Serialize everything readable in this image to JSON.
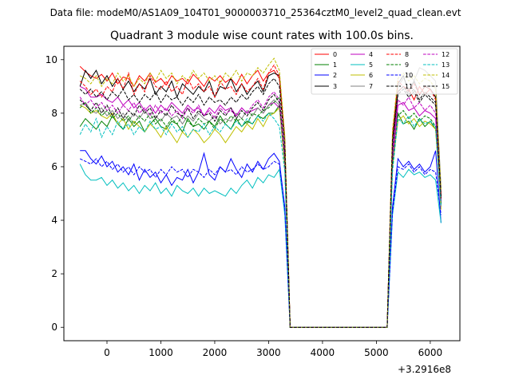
{
  "suptitle": "Data file: modeM0/AS1A09_104T01_9000003710_25364cztM0_level2_quad_clean.evt",
  "chart_data": {
    "type": "line",
    "title": "Quadrant 3 module wise count rates with 100.0s bins.",
    "xlabel": "",
    "ylabel": "",
    "x_offset_label": "+3.2916e8",
    "xlim": [
      -800,
      6550
    ],
    "ylim": [
      -0.5,
      10.5
    ],
    "x_ticks": [
      0,
      1000,
      2000,
      3000,
      4000,
      5000,
      6000
    ],
    "y_ticks": [
      0,
      2,
      4,
      6,
      8,
      10
    ],
    "x": [
      -500,
      -400,
      -300,
      -200,
      -100,
      0,
      100,
      200,
      300,
      400,
      500,
      600,
      700,
      800,
      900,
      1000,
      1100,
      1200,
      1300,
      1400,
      1500,
      1600,
      1700,
      1800,
      1900,
      2000,
      2100,
      2200,
      2300,
      2400,
      2500,
      2600,
      2700,
      2800,
      2900,
      3000,
      3100,
      3200,
      3300,
      3400,
      3500,
      3600,
      3700,
      3800,
      3900,
      4000,
      4100,
      4200,
      4300,
      4400,
      4500,
      4600,
      4700,
      4800,
      4900,
      5000,
      5100,
      5200,
      5300,
      5400,
      5500,
      5600,
      5700,
      5800,
      5900,
      6000,
      6100,
      6200
    ],
    "legend": {
      "location": "upper right",
      "ncol": 4
    },
    "series": [
      {
        "name": "0",
        "color": "#ff0000",
        "dash": "solid",
        "values": [
          9.75,
          9.55,
          9.4,
          9.3,
          9.45,
          9.2,
          9.5,
          9.1,
          9.35,
          9.3,
          9.0,
          9.4,
          9.2,
          9.5,
          9.15,
          9.3,
          9.05,
          9.4,
          9.2,
          9.3,
          9.1,
          9.45,
          9.25,
          9.0,
          9.35,
          9.2,
          9.4,
          9.15,
          9.3,
          9.05,
          9.45,
          9.1,
          9.4,
          9.6,
          9.2,
          9.5,
          9.6,
          9.3,
          7.0,
          0,
          0,
          0,
          0,
          0,
          0,
          0,
          0,
          0,
          0,
          0,
          0,
          0,
          0,
          0,
          0,
          0,
          0,
          0,
          7.0,
          8.8,
          9.0,
          8.9,
          8.5,
          9.0,
          8.7,
          8.9,
          8.6,
          4.8
        ]
      },
      {
        "name": "1",
        "color": "#008000",
        "dash": "solid",
        "values": [
          7.5,
          7.8,
          7.6,
          7.4,
          7.7,
          7.5,
          7.9,
          7.6,
          7.4,
          7.8,
          7.5,
          7.7,
          7.3,
          7.6,
          7.8,
          7.5,
          7.4,
          7.7,
          7.6,
          7.3,
          7.8,
          7.5,
          7.6,
          7.4,
          7.7,
          7.5,
          7.9,
          7.6,
          7.4,
          7.8,
          7.5,
          7.7,
          7.6,
          7.9,
          7.8,
          8.0,
          8.0,
          8.3,
          6.0,
          0,
          0,
          0,
          0,
          0,
          0,
          0,
          0,
          0,
          0,
          0,
          0,
          0,
          0,
          0,
          0,
          0,
          0,
          0,
          6.5,
          8.0,
          7.6,
          7.7,
          7.4,
          7.8,
          7.5,
          7.7,
          7.4,
          4.6
        ]
      },
      {
        "name": "2",
        "color": "#0000ff",
        "dash": "solid",
        "values": [
          6.6,
          6.6,
          6.3,
          6.1,
          6.4,
          6.0,
          6.2,
          5.8,
          6.0,
          5.7,
          6.1,
          5.5,
          5.9,
          5.6,
          5.8,
          5.4,
          5.7,
          5.3,
          5.6,
          5.5,
          5.9,
          5.4,
          5.8,
          6.5,
          5.7,
          5.5,
          6.0,
          5.8,
          6.3,
          5.9,
          5.6,
          6.1,
          5.8,
          6.2,
          5.9,
          6.3,
          6.5,
          6.2,
          4.5,
          0,
          0,
          0,
          0,
          0,
          0,
          0,
          0,
          0,
          0,
          0,
          0,
          0,
          0,
          0,
          0,
          0,
          0,
          0,
          4.5,
          6.3,
          6.0,
          6.2,
          5.9,
          6.1,
          5.8,
          6.0,
          6.6,
          3.9
        ]
      },
      {
        "name": "3",
        "color": "#000000",
        "dash": "solid",
        "values": [
          9.0,
          9.6,
          9.3,
          9.6,
          9.1,
          9.4,
          9.0,
          9.3,
          8.9,
          9.2,
          8.8,
          9.1,
          8.9,
          9.3,
          8.7,
          9.0,
          8.8,
          9.2,
          8.6,
          9.1,
          8.9,
          8.7,
          9.0,
          8.8,
          9.2,
          8.6,
          9.0,
          8.9,
          9.3,
          8.8,
          9.1,
          8.7,
          9.0,
          9.2,
          8.8,
          9.4,
          9.5,
          9.4,
          7.0,
          0,
          0,
          0,
          0,
          0,
          0,
          0,
          0,
          0,
          0,
          0,
          0,
          0,
          0,
          0,
          0,
          0,
          0,
          0,
          7.0,
          9.1,
          9.4,
          8.8,
          9.2,
          8.7,
          9.0,
          8.9,
          8.6,
          4.7
        ]
      },
      {
        "name": "4",
        "color": "#bf00bf",
        "dash": "solid",
        "values": [
          9.0,
          8.9,
          8.6,
          8.6,
          8.7,
          8.5,
          8.4,
          8.6,
          8.3,
          8.5,
          8.2,
          8.4,
          8.1,
          8.3,
          8.0,
          8.3,
          8.1,
          8.4,
          8.2,
          8.0,
          8.3,
          8.1,
          8.2,
          7.9,
          8.2,
          8.0,
          8.3,
          8.1,
          8.2,
          7.9,
          8.2,
          8.0,
          8.1,
          8.2,
          8.0,
          8.3,
          8.4,
          8.2,
          6.2,
          0,
          0,
          0,
          0,
          0,
          0,
          0,
          0,
          0,
          0,
          0,
          0,
          0,
          0,
          0,
          0,
          0,
          0,
          0,
          6.2,
          8.3,
          8.4,
          8.1,
          8.2,
          7.9,
          8.1,
          8.0,
          7.8,
          4.5
        ]
      },
      {
        "name": "5",
        "color": "#00bfbf",
        "dash": "solid",
        "values": [
          6.1,
          5.7,
          5.5,
          5.5,
          5.6,
          5.3,
          5.5,
          5.2,
          5.4,
          5.1,
          5.3,
          5.0,
          5.3,
          5.1,
          5.4,
          5.0,
          5.2,
          4.9,
          5.3,
          5.1,
          5.0,
          5.2,
          4.9,
          5.2,
          5.0,
          5.1,
          5.0,
          4.9,
          5.2,
          5.0,
          5.3,
          5.5,
          5.2,
          5.6,
          5.4,
          5.7,
          5.6,
          5.9,
          4.2,
          0,
          0,
          0,
          0,
          0,
          0,
          0,
          0,
          0,
          0,
          0,
          0,
          0,
          0,
          0,
          0,
          0,
          0,
          0,
          4.2,
          5.8,
          5.6,
          5.9,
          5.7,
          5.8,
          5.6,
          5.7,
          5.5,
          3.9
        ]
      },
      {
        "name": "6",
        "color": "#bfbf00",
        "dash": "solid",
        "values": [
          8.3,
          8.2,
          8.0,
          8.1,
          7.9,
          7.8,
          8.0,
          7.6,
          7.8,
          7.4,
          7.7,
          7.5,
          7.3,
          7.6,
          7.4,
          7.1,
          7.5,
          7.2,
          6.9,
          7.3,
          7.1,
          7.4,
          7.2,
          6.9,
          7.1,
          7.4,
          7.2,
          6.9,
          7.2,
          7.5,
          7.3,
          7.6,
          7.4,
          7.8,
          7.5,
          7.9,
          8.0,
          8.2,
          6.0,
          0,
          0,
          0,
          0,
          0,
          0,
          0,
          0,
          0,
          0,
          0,
          0,
          0,
          0,
          0,
          0,
          0,
          0,
          0,
          6.0,
          7.7,
          7.9,
          7.6,
          7.8,
          7.5,
          7.7,
          7.6,
          7.4,
          4.4
        ]
      },
      {
        "name": "7",
        "color": "#808080",
        "dash": "solid",
        "values": [
          8.3,
          8.4,
          8.1,
          8.0,
          8.2,
          7.9,
          8.1,
          7.8,
          8.0,
          7.7,
          8.0,
          7.8,
          8.1,
          7.8,
          7.9,
          7.7,
          8.0,
          7.8,
          7.9,
          7.6,
          7.9,
          7.7,
          8.0,
          7.8,
          7.7,
          7.9,
          7.6,
          7.8,
          7.7,
          8.0,
          7.8,
          8.1,
          7.9,
          8.2,
          8.0,
          8.3,
          8.5,
          8.3,
          6.2,
          0,
          0,
          0,
          0,
          0,
          0,
          0,
          0,
          0,
          0,
          0,
          0,
          0,
          0,
          0,
          0,
          0,
          0,
          0,
          6.5,
          9.0,
          9.3,
          9.5,
          9.2,
          9.7,
          9.6,
          9.4,
          9.2,
          5.2
        ]
      },
      {
        "name": "8",
        "color": "#ff0000",
        "dash": "dashed",
        "values": [
          9.2,
          9.0,
          8.7,
          8.9,
          8.6,
          9.0,
          8.8,
          9.3,
          8.9,
          9.5,
          8.7,
          9.1,
          8.8,
          9.4,
          9.0,
          8.9,
          9.2,
          8.8,
          9.0,
          8.7,
          9.3,
          8.9,
          9.1,
          8.8,
          9.0,
          8.6,
          9.2,
          8.9,
          9.0,
          8.7,
          9.1,
          8.8,
          9.0,
          9.3,
          8.9,
          9.5,
          9.8,
          9.4,
          7.0,
          0,
          0,
          0,
          0,
          0,
          0,
          0,
          0,
          0,
          0,
          0,
          0,
          0,
          0,
          0,
          0,
          0,
          0,
          0,
          7.2,
          9.2,
          9.0,
          8.8,
          9.1,
          8.7,
          9.0,
          8.9,
          8.5,
          5.0
        ]
      },
      {
        "name": "9",
        "color": "#008000",
        "dash": "dashed",
        "values": [
          8.2,
          8.4,
          8.0,
          8.2,
          7.9,
          8.1,
          7.8,
          8.0,
          7.7,
          7.9,
          7.6,
          7.9,
          7.7,
          8.0,
          7.6,
          7.8,
          7.5,
          7.8,
          7.6,
          7.9,
          7.7,
          7.5,
          7.8,
          7.6,
          7.7,
          7.4,
          7.8,
          7.6,
          7.9,
          7.7,
          7.8,
          7.6,
          8.0,
          7.9,
          8.1,
          8.2,
          8.4,
          8.6,
          6.4,
          0,
          0,
          0,
          0,
          0,
          0,
          0,
          0,
          0,
          0,
          0,
          0,
          0,
          0,
          0,
          0,
          0,
          0,
          0,
          6.0,
          7.9,
          8.1,
          7.8,
          8.0,
          7.7,
          7.9,
          7.8,
          7.5,
          4.6
        ]
      },
      {
        "name": "10",
        "color": "#0000ff",
        "dash": "dashed",
        "values": [
          6.3,
          6.2,
          6.1,
          6.3,
          6.0,
          6.2,
          5.9,
          6.1,
          5.8,
          6.0,
          5.7,
          6.0,
          5.8,
          5.9,
          5.6,
          5.9,
          5.7,
          6.0,
          5.8,
          5.9,
          5.6,
          5.9,
          5.8,
          5.6,
          5.9,
          5.7,
          6.0,
          5.8,
          5.9,
          5.7,
          6.0,
          5.8,
          5.9,
          6.1,
          5.9,
          6.0,
          6.2,
          6.1,
          4.4,
          0,
          0,
          0,
          0,
          0,
          0,
          0,
          0,
          0,
          0,
          0,
          0,
          0,
          0,
          0,
          0,
          0,
          0,
          0,
          4.3,
          6.0,
          5.9,
          6.1,
          5.8,
          6.0,
          5.7,
          5.9,
          5.8,
          4.2
        ]
      },
      {
        "name": "11",
        "color": "#000000",
        "dash": "dashed",
        "values": [
          8.5,
          8.3,
          8.1,
          8.4,
          8.0,
          8.3,
          7.9,
          8.2,
          7.8,
          8.1,
          7.9,
          8.3,
          8.0,
          8.2,
          7.8,
          8.1,
          7.9,
          8.3,
          8.0,
          7.9,
          8.2,
          7.8,
          8.1,
          7.9,
          8.0,
          7.7,
          8.1,
          7.9,
          8.2,
          7.8,
          8.1,
          7.9,
          8.2,
          8.4,
          8.1,
          8.5,
          8.7,
          8.4,
          6.4,
          0,
          0,
          0,
          0,
          0,
          0,
          0,
          0,
          0,
          0,
          0,
          0,
          0,
          0,
          0,
          0,
          0,
          0,
          0,
          6.6,
          8.7,
          8.9,
          8.6,
          8.8,
          8.4,
          8.7,
          8.5,
          8.3,
          4.8
        ]
      },
      {
        "name": "12",
        "color": "#bf00bf",
        "dash": "dashed",
        "values": [
          8.6,
          8.3,
          8.5,
          8.2,
          8.4,
          8.1,
          8.3,
          8.0,
          8.3,
          8.1,
          8.4,
          8.0,
          8.2,
          7.9,
          8.3,
          8.0,
          8.2,
          7.9,
          8.1,
          7.8,
          8.2,
          8.0,
          8.3,
          7.9,
          8.1,
          7.8,
          8.2,
          8.0,
          8.1,
          7.9,
          8.2,
          8.0,
          8.3,
          8.5,
          8.2,
          8.6,
          8.8,
          8.5,
          6.4,
          0,
          0,
          0,
          0,
          0,
          0,
          0,
          0,
          0,
          0,
          0,
          0,
          0,
          0,
          0,
          0,
          0,
          0,
          0,
          6.6,
          8.5,
          8.3,
          8.6,
          8.2,
          8.4,
          8.1,
          8.3,
          8.0,
          4.7
        ]
      },
      {
        "name": "13",
        "color": "#00bfbf",
        "dash": "dashed",
        "values": [
          7.2,
          7.6,
          7.3,
          7.8,
          7.1,
          7.5,
          7.2,
          7.7,
          7.4,
          7.6,
          7.2,
          7.5,
          7.3,
          7.7,
          7.4,
          7.5,
          7.2,
          7.6,
          7.3,
          7.5,
          7.1,
          7.4,
          7.3,
          7.6,
          7.2,
          7.5,
          7.3,
          7.6,
          7.4,
          7.7,
          7.5,
          7.8,
          7.6,
          7.9,
          7.7,
          8.0,
          7.8,
          7.5,
          5.8,
          0,
          0,
          0,
          0,
          0,
          0,
          0,
          0,
          0,
          0,
          0,
          0,
          0,
          0,
          0,
          0,
          0,
          0,
          0,
          5.8,
          7.8,
          7.6,
          7.9,
          7.5,
          7.8,
          7.6,
          7.7,
          7.5,
          4.5
        ]
      },
      {
        "name": "14",
        "color": "#bfbf00",
        "dash": "dashed",
        "values": [
          9.4,
          9.3,
          9.1,
          9.4,
          9.0,
          9.3,
          9.1,
          9.5,
          9.2,
          9.4,
          9.0,
          9.3,
          9.1,
          9.5,
          9.2,
          9.6,
          9.3,
          9.5,
          9.1,
          9.4,
          9.2,
          9.6,
          9.3,
          9.5,
          9.2,
          9.4,
          9.1,
          9.5,
          9.3,
          9.6,
          9.2,
          9.5,
          9.4,
          9.7,
          9.5,
          9.8,
          10.05,
          9.6,
          7.2,
          0,
          0,
          0,
          0,
          0,
          0,
          0,
          0,
          0,
          0,
          0,
          0,
          0,
          0,
          0,
          0,
          0,
          0,
          0,
          7.4,
          9.3,
          9.5,
          9.2,
          9.4,
          9.1,
          9.3,
          9.2,
          8.9,
          5.1
        ]
      },
      {
        "name": "15",
        "color": "#000000",
        "dash": "dashed",
        "values": [
          8.9,
          8.7,
          8.9,
          8.6,
          8.8,
          8.5,
          8.8,
          8.6,
          8.9,
          8.5,
          8.7,
          8.4,
          8.7,
          8.5,
          8.8,
          8.4,
          8.7,
          8.5,
          8.6,
          8.3,
          8.6,
          8.4,
          8.7,
          8.3,
          8.6,
          8.4,
          8.5,
          8.3,
          8.6,
          8.4,
          8.7,
          8.5,
          8.8,
          9.0,
          8.7,
          9.1,
          9.3,
          9.0,
          6.8,
          0,
          0,
          0,
          0,
          0,
          0,
          0,
          0,
          0,
          0,
          0,
          0,
          0,
          0,
          0,
          0,
          0,
          0,
          0,
          7.0,
          8.8,
          9.0,
          8.7,
          8.9,
          8.5,
          8.8,
          8.6,
          8.4,
          4.9
        ]
      }
    ]
  }
}
